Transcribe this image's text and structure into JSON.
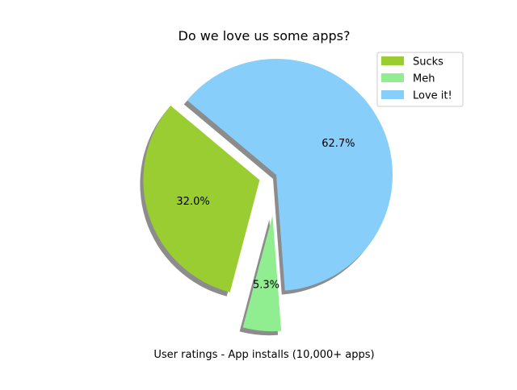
{
  "chart_data": {
    "type": "pie",
    "title": "Do we love us some apps?",
    "xlabel": "User ratings - App installs (10,000+ apps)",
    "legend_position": "top-right",
    "shadow": true,
    "slices": [
      {
        "label": "Sucks",
        "value": 32.0,
        "pct_label": "32.0%",
        "color": "#9acd32",
        "explode": 0.15
      },
      {
        "label": "Meh",
        "value": 5.3,
        "pct_label": "5.3%",
        "color": "#90ee90",
        "explode": 0.35
      },
      {
        "label": "Love it!",
        "value": 62.7,
        "pct_label": "62.7%",
        "color": "#87cefa",
        "explode": 0.0
      }
    ]
  }
}
